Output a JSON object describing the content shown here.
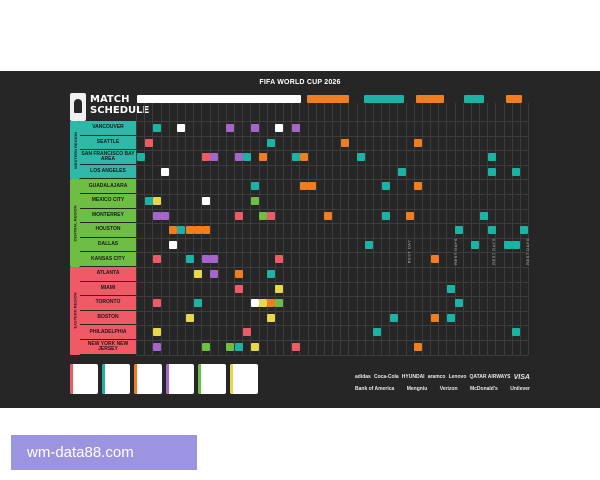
{
  "poster": {
    "title": "FIFA WORLD CUP 2026",
    "schedule_title_line1": "MATCH",
    "schedule_title_line2": "SCHEDULE",
    "regions": [
      {
        "name": "WESTERN REGION",
        "color": "#2eb8a8"
      },
      {
        "name": "CENTRAL REGION",
        "color": "#6fbe44"
      },
      {
        "name": "EASTERN REGION",
        "color": "#f05a66"
      }
    ],
    "cities": [
      {
        "name": "VANCOUVER",
        "region": 0
      },
      {
        "name": "SEATTLE",
        "region": 0
      },
      {
        "name": "SAN FRANCISCO BAY AREA",
        "region": 0
      },
      {
        "name": "LOS ANGELES",
        "region": 0
      },
      {
        "name": "GUADALAJARA",
        "region": 1
      },
      {
        "name": "MEXICO CITY",
        "region": 1
      },
      {
        "name": "MONTERREY",
        "region": 1
      },
      {
        "name": "HOUSTON",
        "region": 1
      },
      {
        "name": "DALLAS",
        "region": 1
      },
      {
        "name": "KANSAS CITY",
        "region": 1
      },
      {
        "name": "ATLANTA",
        "region": 2
      },
      {
        "name": "MIAMI",
        "region": 2
      },
      {
        "name": "TORONTO",
        "region": 2
      },
      {
        "name": "BOSTON",
        "region": 2
      },
      {
        "name": "PHILADELPHIA",
        "region": 2
      },
      {
        "name": "NEW YORK NEW JERSEY",
        "region": 2
      }
    ],
    "stage_colors": {
      "group": "#ffffff",
      "round32": "#f07d1e",
      "round16": "#1bb3a3",
      "quarter": "#f07d1e",
      "semi": "#1bb3a3",
      "final": "#f07d1e"
    },
    "rest_days_label": "REST DAYS",
    "rest_day_label": "REST DAY"
  },
  "sponsors": {
    "row1": [
      "adidas",
      "Coca-Cola",
      "HYUNDAI",
      "aramco",
      "Lenovo",
      "QATAR AIRWAYS",
      "VISA"
    ],
    "row2": [
      "Bank of America",
      "Mengniu",
      "Verizon",
      "McDonald's",
      "Unilever"
    ]
  },
  "watermark": {
    "text": "wm-data88.com"
  }
}
